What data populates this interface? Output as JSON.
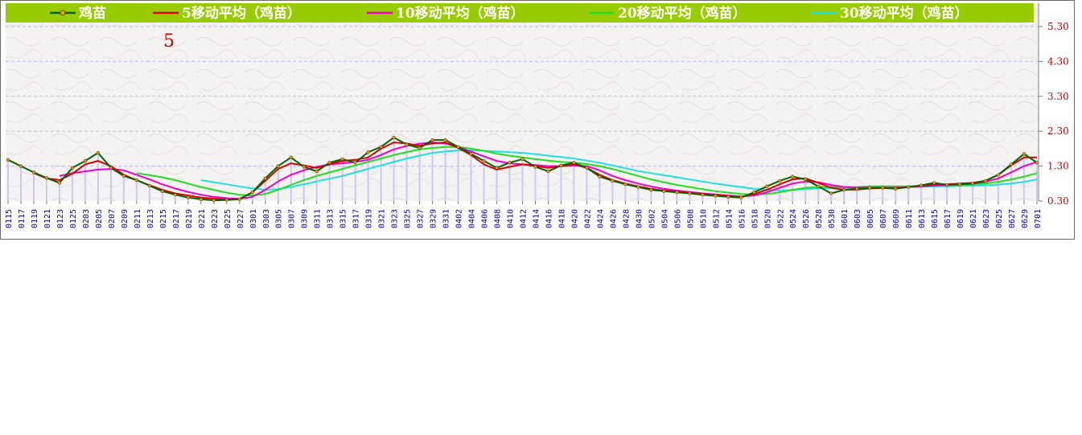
{
  "chart_data": {
    "type": "line",
    "series": [
      {
        "name": "鸡苗",
        "color": "#006400",
        "key": "price"
      },
      {
        "name": "5移动平均（鸡苗）",
        "color": "#dd0000",
        "key": "ma5"
      },
      {
        "name": "10移动平均（鸡苗）",
        "color": "#ee00cc",
        "key": "ma10"
      },
      {
        "name": "20移动平均（鸡苗）",
        "color": "#22dd22",
        "key": "ma20"
      },
      {
        "name": "30移动平均（鸡苗）",
        "color": "#22e0e0",
        "key": "ma30"
      }
    ],
    "x_ticks": [
      "0115",
      "0117",
      "0119",
      "0121",
      "0123",
      "0125",
      "0203",
      "0205",
      "0207",
      "0209",
      "0211",
      "0213",
      "0215",
      "0217",
      "0219",
      "0221",
      "0223",
      "0225",
      "0227",
      "0301",
      "0303",
      "0305",
      "0307",
      "0309",
      "0311",
      "0313",
      "0315",
      "0317",
      "0319",
      "0321",
      "0323",
      "0325",
      "0327",
      "0329",
      "0331",
      "0402",
      "0404",
      "0406",
      "0408",
      "0410",
      "0412",
      "0414",
      "0416",
      "0418",
      "0420",
      "0422",
      "0424",
      "0426",
      "0428",
      "0430",
      "0502",
      "0504",
      "0506",
      "0508",
      "0510",
      "0512",
      "0514",
      "0516",
      "0518",
      "0520",
      "0522",
      "0524",
      "0526",
      "0528",
      "0530",
      "0601",
      "0603",
      "0605",
      "0607",
      "0609",
      "0611",
      "0613",
      "0615",
      "0617",
      "0619",
      "0621",
      "0623",
      "0625",
      "0627",
      "0629",
      "0701"
    ],
    "y_ticks": [
      "5.30",
      "4.30",
      "3.30",
      "2.30",
      "1.30",
      "0.30"
    ],
    "ylim": [
      0.3,
      5.3
    ],
    "annotation": "5",
    "values": {
      "price": [
        1.48,
        1.3,
        1.12,
        0.96,
        0.82,
        1.25,
        1.45,
        1.68,
        1.25,
        1.02,
        0.9,
        0.74,
        0.58,
        0.48,
        0.4,
        0.35,
        0.32,
        0.33,
        0.35,
        0.55,
        0.95,
        1.3,
        1.55,
        1.28,
        1.15,
        1.4,
        1.5,
        1.4,
        1.7,
        1.85,
        2.12,
        1.92,
        1.82,
        2.05,
        2.05,
        1.85,
        1.65,
        1.45,
        1.25,
        1.4,
        1.5,
        1.28,
        1.15,
        1.32,
        1.4,
        1.25,
        1.0,
        0.88,
        0.78,
        0.7,
        0.62,
        0.58,
        0.55,
        0.52,
        0.48,
        0.45,
        0.42,
        0.4,
        0.55,
        0.72,
        0.88,
        1.0,
        0.92,
        0.72,
        0.52,
        0.62,
        0.65,
        0.68,
        0.68,
        0.65,
        0.7,
        0.75,
        0.82,
        0.76,
        0.78,
        0.8,
        0.88,
        1.05,
        1.35,
        1.65,
        1.4
      ],
      "ma5": [
        null,
        null,
        1.1,
        0.95,
        0.9,
        1.08,
        1.35,
        1.45,
        1.3,
        1.05,
        0.9,
        0.75,
        0.62,
        0.52,
        0.46,
        0.4,
        0.37,
        0.34,
        0.36,
        0.55,
        0.88,
        1.22,
        1.38,
        1.32,
        1.25,
        1.35,
        1.45,
        1.48,
        1.55,
        1.8,
        1.98,
        1.95,
        1.88,
        1.95,
        1.98,
        1.82,
        1.62,
        1.35,
        1.2,
        1.28,
        1.35,
        1.3,
        1.25,
        1.3,
        1.35,
        1.25,
        1.05,
        0.9,
        0.8,
        0.72,
        0.65,
        0.6,
        0.57,
        0.53,
        0.5,
        0.47,
        0.44,
        0.42,
        0.5,
        0.62,
        0.78,
        0.92,
        0.95,
        0.82,
        0.68,
        0.62,
        0.63,
        0.66,
        0.67,
        0.67,
        0.7,
        0.74,
        0.78,
        0.78,
        0.8,
        0.82,
        0.88,
        1.05,
        1.32,
        1.55,
        1.55
      ],
      "ma10": [
        null,
        null,
        null,
        null,
        1.02,
        1.1,
        1.15,
        1.2,
        1.22,
        1.18,
        1.05,
        0.92,
        0.78,
        0.66,
        0.56,
        0.48,
        0.42,
        0.38,
        0.36,
        0.42,
        0.62,
        0.86,
        1.05,
        1.18,
        1.28,
        1.35,
        1.38,
        1.42,
        1.48,
        1.62,
        1.78,
        1.88,
        1.94,
        1.98,
        1.95,
        1.85,
        1.72,
        1.58,
        1.45,
        1.38,
        1.35,
        1.33,
        1.3,
        1.3,
        1.32,
        1.3,
        1.18,
        1.02,
        0.9,
        0.8,
        0.72,
        0.65,
        0.6,
        0.56,
        0.52,
        0.49,
        0.46,
        0.43,
        0.46,
        0.55,
        0.68,
        0.8,
        0.86,
        0.84,
        0.76,
        0.7,
        0.68,
        0.68,
        0.68,
        0.68,
        0.7,
        0.72,
        0.74,
        0.76,
        0.78,
        0.8,
        0.85,
        0.95,
        1.12,
        1.3,
        1.42
      ],
      "ma20": [
        null,
        null,
        null,
        null,
        null,
        null,
        null,
        null,
        null,
        null,
        1.1,
        1.04,
        0.98,
        0.9,
        0.8,
        0.7,
        0.62,
        0.54,
        0.48,
        0.46,
        0.5,
        0.62,
        0.76,
        0.9,
        1.02,
        1.12,
        1.22,
        1.32,
        1.42,
        1.52,
        1.62,
        1.7,
        1.78,
        1.82,
        1.85,
        1.85,
        1.8,
        1.74,
        1.66,
        1.6,
        1.55,
        1.5,
        1.46,
        1.42,
        1.4,
        1.36,
        1.3,
        1.22,
        1.12,
        1.02,
        0.92,
        0.84,
        0.76,
        0.7,
        0.64,
        0.58,
        0.54,
        0.5,
        0.48,
        0.5,
        0.55,
        0.62,
        0.68,
        0.7,
        0.7,
        0.7,
        0.7,
        0.72,
        0.72,
        0.72,
        0.72,
        0.73,
        0.74,
        0.75,
        0.76,
        0.78,
        0.8,
        0.85,
        0.92,
        1.0,
        1.1
      ],
      "ma30": [
        null,
        null,
        null,
        null,
        null,
        null,
        null,
        null,
        null,
        null,
        null,
        null,
        null,
        null,
        null,
        0.9,
        0.84,
        0.78,
        0.72,
        0.66,
        0.62,
        0.64,
        0.7,
        0.78,
        0.86,
        0.94,
        1.02,
        1.12,
        1.22,
        1.32,
        1.42,
        1.52,
        1.6,
        1.68,
        1.72,
        1.75,
        1.75,
        1.74,
        1.72,
        1.7,
        1.68,
        1.64,
        1.6,
        1.56,
        1.52,
        1.46,
        1.4,
        1.32,
        1.24,
        1.16,
        1.1,
        1.04,
        0.98,
        0.92,
        0.86,
        0.8,
        0.75,
        0.7,
        0.65,
        0.62,
        0.6,
        0.62,
        0.64,
        0.66,
        0.67,
        0.68,
        0.69,
        0.7,
        0.7,
        0.7,
        0.7,
        0.71,
        0.72,
        0.72,
        0.73,
        0.74,
        0.75,
        0.77,
        0.8,
        0.85,
        0.92
      ]
    }
  }
}
